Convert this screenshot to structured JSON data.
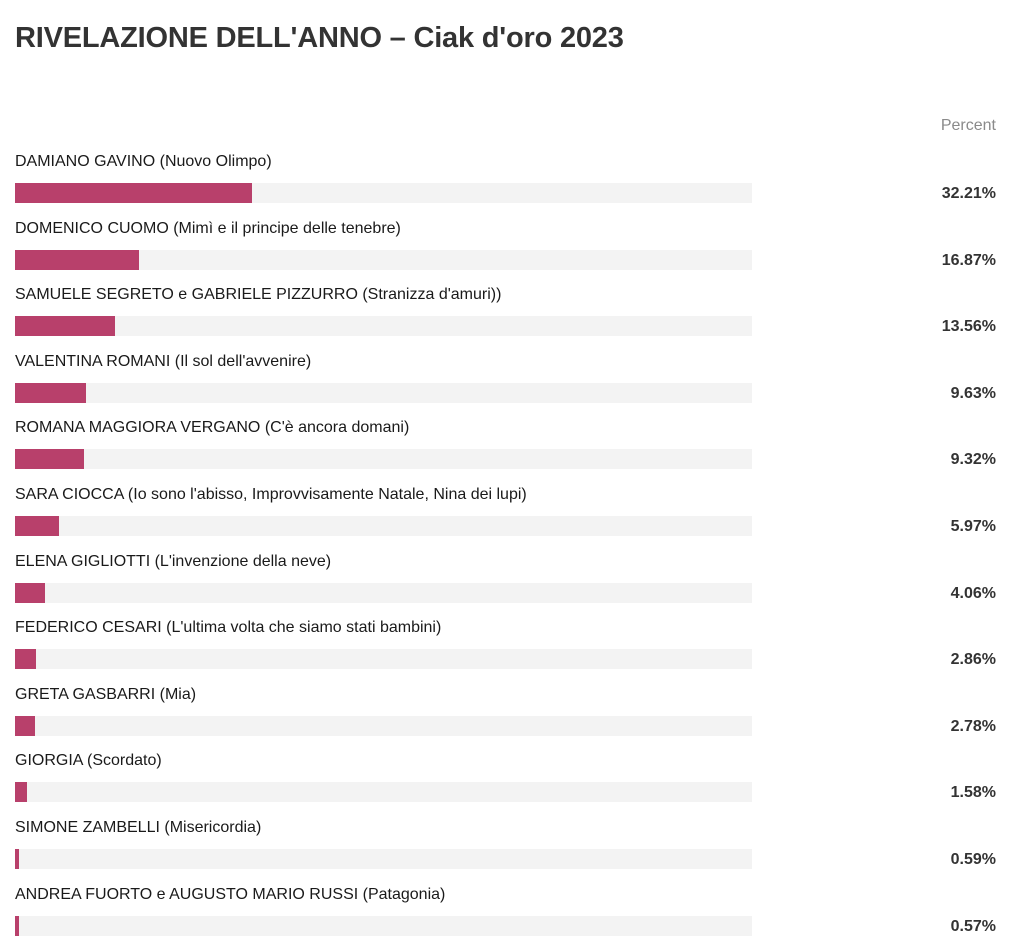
{
  "title": "RIVELAZIONE DELL'ANNO – Ciak d'oro 2023",
  "column_header": "Percent",
  "colors": {
    "bar": "#b8406b",
    "track": "#f3f3f3"
  },
  "chart_data": {
    "type": "bar",
    "orientation": "horizontal",
    "title": "RIVELAZIONE DELL'ANNO – Ciak d'oro 2023",
    "value_header": "Percent",
    "xlim": [
      0,
      100
    ],
    "categories": [
      "DAMIANO GAVINO (Nuovo Olimpo)",
      "DOMENICO CUOMO (Mimì e il principe delle tenebre)",
      "SAMUELE SEGRETO e GABRIELE PIZZURRO (Stranizza d'amuri))",
      "VALENTINA ROMANI (Il sol dell'avvenire)",
      "ROMANA MAGGIORA VERGANO (C'è ancora domani)",
      "SARA CIOCCA (Io sono l'abisso, Improvvisamente Natale, Nina dei lupi)",
      "ELENA GIGLIOTTI (L'invenzione della neve)",
      "FEDERICO CESARI (L'ultima volta che siamo stati bambini)",
      "GRETA GASBARRI (Mia)",
      "GIORGIA (Scordato)",
      "SIMONE ZAMBELLI (Misericordia)",
      "ANDREA FUORTO e AUGUSTO MARIO RUSSI (Patagonia)"
    ],
    "values": [
      32.21,
      16.87,
      13.56,
      9.63,
      9.32,
      5.97,
      4.06,
      2.86,
      2.78,
      1.58,
      0.59,
      0.57
    ],
    "value_labels": [
      "32.21%",
      "16.87%",
      "13.56%",
      "9.63%",
      "9.32%",
      "5.97%",
      "4.06%",
      "2.86%",
      "2.78%",
      "1.58%",
      "0.59%",
      "0.57%"
    ]
  }
}
